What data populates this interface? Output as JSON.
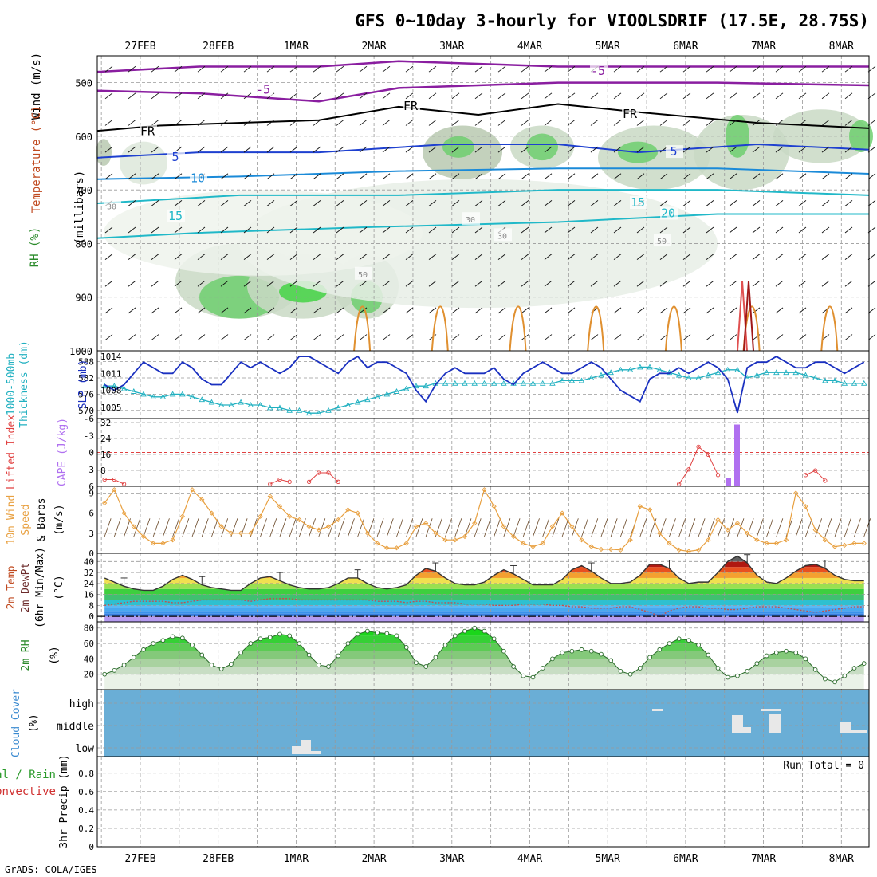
{
  "title": "GFS 0~10day 3-hourly for VIOOLSDRIF (17.5E, 28.75S)",
  "footer": "GrADS: COLA/IGES",
  "dates": [
    "27FEB",
    "28FEB",
    "1MAR",
    "2MAR",
    "3MAR",
    "4MAR",
    "5MAR",
    "6MAR",
    "7MAR",
    "8MAR"
  ],
  "colors": {
    "temp": "#2050d0",
    "slp": "#1a30c0",
    "thick": "#20b0c0",
    "li": "#e04040",
    "cape": "#b070f0",
    "wind": "#e8a040",
    "rh": "#30b030",
    "cloud": "#6aaed6",
    "zero": "#8a2be2",
    "fr": "#000000"
  },
  "panels": {
    "upper": {
      "ylabel_a": "Wind (m/s)",
      "ylabel_b": "Temperature (°C)",
      "ylabel_c": "RH (%)",
      "unit": "(millibars)",
      "ticks": [
        "500",
        "600",
        "700",
        "800",
        "900",
        "1000"
      ],
      "levels": [
        "-5",
        "-5",
        "FR",
        "FR",
        "FR",
        "5",
        "5",
        "10",
        "15",
        "15",
        "20",
        "30",
        "30",
        "30",
        "50",
        "50"
      ]
    },
    "slp": {
      "ylabel_a": "1000-500mb",
      "ylabel_b": "Thickness (dm)",
      "ylabel_c": "SLP (mb)",
      "left_ticks": [
        "588",
        "582",
        "576",
        "570"
      ],
      "right_ticks": [
        "1014",
        "1011",
        "1008",
        "1005"
      ]
    },
    "cape": {
      "ylabel_a": "Lifted Index",
      "ylabel_b": "CAPE (J/kg)",
      "left_ticks": [
        "-6",
        "-3",
        "0",
        "3",
        "6"
      ],
      "right_ticks": [
        "32",
        "24",
        "16",
        "8"
      ]
    },
    "wind10": {
      "ylabel_a": "10m Wind",
      "ylabel_b": "Speed",
      "ylabel_c": "& Barbs",
      "unit": "(m/s)",
      "ticks": [
        "9",
        "6",
        "3",
        "0"
      ]
    },
    "temp2m": {
      "ylabel_a": "2m Temp",
      "ylabel_b": "2m DewPt",
      "ylabel_c": "(6hr Min/Max)",
      "unit": "(°C)",
      "ticks": [
        "40",
        "32",
        "24",
        "16",
        "8",
        "0"
      ]
    },
    "rh2m": {
      "ylabel_a": "2m RH",
      "unit": "(%)",
      "ticks": [
        "80",
        "60",
        "40",
        "20"
      ]
    },
    "cloud": {
      "ylabel_a": "Cloud Cover",
      "unit": "(%)",
      "ticks": [
        "high",
        "middle",
        "low"
      ]
    },
    "precip": {
      "ylabel_a": "Total / Rain",
      "ylabel_b": "Convective",
      "ylabel_c": "3hr Precip (mm)",
      "ticks": [
        "0.8",
        "0.6",
        "0.4",
        "0.2",
        "0"
      ],
      "run_total": "Run Total = 0"
    }
  },
  "chart_data": [
    {
      "type": "line",
      "title": "1000-500mb Thickness (dm) / SLP (mb)",
      "series": [
        {
          "name": "SLP (mb)",
          "axis": "right",
          "values": [
            1009,
            1008,
            1009,
            1011,
            1013,
            1012,
            1011,
            1011,
            1013,
            1012,
            1010,
            1009,
            1009,
            1011,
            1013,
            1012,
            1013,
            1012,
            1011,
            1012,
            1014,
            1014,
            1013,
            1012,
            1011,
            1013,
            1014,
            1012,
            1013,
            1013,
            1012,
            1011,
            1008,
            1006,
            1009,
            1011,
            1012,
            1011,
            1011,
            1011,
            1012,
            1010,
            1009,
            1011,
            1012,
            1013,
            1012,
            1011,
            1011,
            1012,
            1013,
            1012,
            1010,
            1008,
            1007,
            1006,
            1010,
            1011,
            1011,
            1012,
            1011,
            1012,
            1013,
            1012,
            1010,
            1004,
            1012,
            1013,
            1013,
            1014,
            1013,
            1012,
            1012,
            1013,
            1013,
            1012,
            1011,
            1012,
            1013
          ]
        },
        {
          "name": "1000-500mb Thickness (dm)",
          "axis": "left",
          "values": [
            579,
            579,
            578,
            577,
            576,
            575,
            575,
            576,
            576,
            575,
            574,
            573,
            572,
            572,
            573,
            572,
            572,
            571,
            571,
            570,
            570,
            569,
            569,
            570,
            571,
            572,
            573,
            574,
            575,
            576,
            577,
            578,
            579,
            579,
            580,
            580,
            580,
            580,
            580,
            580,
            580,
            580,
            580,
            580,
            580,
            580,
            580,
            581,
            581,
            581,
            582,
            583,
            584,
            585,
            585,
            586,
            586,
            585,
            584,
            583,
            582,
            582,
            583,
            584,
            585,
            585,
            582,
            583,
            584,
            584,
            584,
            584,
            583,
            582,
            581,
            581,
            580,
            580,
            580
          ]
        }
      ]
    },
    {
      "type": "bar",
      "title": "CAPE (J/kg) / Lifted Index",
      "cape_events": [
        {
          "date": "6MAR",
          "values": [
            4,
            31
          ]
        }
      ],
      "lifted_index_series": [
        {
          "name": "Lifted Index",
          "values": [
            4.8,
            4.8,
            5.6,
            6,
            6,
            6,
            6,
            6,
            6,
            6,
            6,
            6,
            6,
            6,
            6,
            6,
            6,
            5.6,
            4.8,
            5.2,
            6,
            5.2,
            3.6,
            3.6,
            5.2,
            6,
            6,
            6,
            6,
            6,
            6,
            6,
            6,
            6,
            6,
            6,
            6,
            6,
            6,
            6,
            6,
            6,
            6,
            6,
            6,
            6,
            6,
            6,
            6,
            6,
            6,
            6,
            6,
            6,
            6,
            6,
            6,
            6,
            6,
            5.6,
            3,
            -1,
            0.4,
            4,
            6,
            6,
            6,
            6,
            6,
            6,
            6,
            6,
            4,
            3.2,
            5,
            6,
            6,
            6,
            6
          ]
        }
      ]
    },
    {
      "type": "line",
      "title": "10m Wind Speed (m/s)",
      "series": [
        {
          "name": "10m Wind Speed",
          "values": [
            7.5,
            9.5,
            6,
            4,
            2.5,
            1.5,
            1.5,
            2,
            5.5,
            9.5,
            8,
            6,
            4,
            3,
            3,
            3,
            5.5,
            8.5,
            7,
            5.5,
            5,
            4,
            3.5,
            4,
            5,
            6.5,
            6,
            3,
            1.5,
            0.8,
            0.8,
            1.5,
            4,
            4.5,
            3,
            2,
            2,
            2.5,
            4.5,
            9.5,
            7,
            4,
            2.5,
            1.5,
            1,
            1.5,
            4,
            6,
            4,
            2,
            1,
            0.6,
            0.6,
            0.5,
            2,
            7,
            6.5,
            3,
            1.5,
            0.5,
            0.3,
            0.5,
            2,
            5,
            3.5,
            4.5,
            3,
            2,
            1.5,
            1.5,
            2,
            9,
            7,
            3.5,
            2,
            1,
            1.2,
            1.5,
            1.5
          ]
        }
      ]
    },
    {
      "type": "area",
      "title": "2m Temp / 2m DewPt (°C)",
      "series": [
        {
          "name": "2m Temp",
          "values": [
            28,
            25,
            22,
            20,
            19,
            19,
            22,
            27,
            30,
            27,
            23,
            21,
            20,
            19,
            19,
            24,
            28,
            29,
            26,
            23,
            21,
            20,
            20,
            21,
            24,
            28,
            28,
            24,
            21,
            20,
            21,
            23,
            30,
            35,
            33,
            28,
            24,
            23,
            23,
            25,
            30,
            34,
            31,
            27,
            23,
            23,
            23,
            27,
            34,
            37,
            33,
            28,
            24,
            24,
            25,
            30,
            38,
            38,
            35,
            28,
            24,
            25,
            25,
            32,
            40,
            44,
            39,
            30,
            25,
            24,
            28,
            33,
            37,
            38,
            35,
            30,
            27,
            26,
            26
          ]
        },
        {
          "name": "2m DewPt",
          "values": [
            8,
            9,
            10,
            11,
            11,
            11,
            11,
            10,
            10,
            11,
            12,
            12,
            12,
            12,
            12,
            11,
            12,
            13,
            13,
            13,
            12,
            12,
            12,
            12,
            12,
            12,
            12,
            12,
            11,
            11,
            11,
            10,
            11,
            11,
            10,
            10,
            10,
            9,
            9,
            9,
            8,
            8,
            8,
            9,
            9,
            9,
            8,
            8,
            7,
            7,
            6,
            6,
            6,
            7,
            7,
            5,
            3,
            0,
            4,
            6,
            7,
            7,
            6,
            6,
            5,
            5,
            6,
            7,
            7,
            7,
            6,
            5,
            4,
            3,
            4,
            5,
            6,
            7,
            7
          ]
        }
      ]
    },
    {
      "type": "area",
      "title": "2m RH (%)",
      "series": [
        {
          "name": "2m RH",
          "values": [
            20,
            25,
            32,
            42,
            52,
            60,
            64,
            69,
            67,
            58,
            45,
            32,
            27,
            33,
            48,
            60,
            66,
            68,
            72,
            70,
            60,
            45,
            32,
            30,
            44,
            60,
            72,
            76,
            74,
            73,
            70,
            55,
            35,
            30,
            42,
            58,
            70,
            76,
            80,
            76,
            66,
            50,
            30,
            18,
            16,
            28,
            40,
            48,
            50,
            52,
            50,
            46,
            38,
            24,
            20,
            28,
            42,
            52,
            60,
            66,
            64,
            58,
            45,
            28,
            16,
            18,
            24,
            34,
            44,
            48,
            50,
            48,
            40,
            26,
            14,
            10,
            18,
            28,
            34
          ]
        }
      ]
    },
    {
      "type": "bar",
      "title": "Cloud Cover (%)",
      "categories": [
        "low",
        "middle",
        "high"
      ],
      "events": [
        {
          "date": "1MAR",
          "level": "low"
        },
        {
          "date": "5MAR",
          "level": "high"
        },
        {
          "date": "6MAR",
          "level": "middle"
        },
        {
          "date": "7MAR",
          "level": "middle"
        },
        {
          "date": "8MAR",
          "level": "middle"
        }
      ]
    },
    {
      "type": "bar",
      "title": "3hr Precip (mm)",
      "ylim": [
        0,
        1
      ],
      "values": [],
      "note": "Run Total = 0"
    }
  ]
}
